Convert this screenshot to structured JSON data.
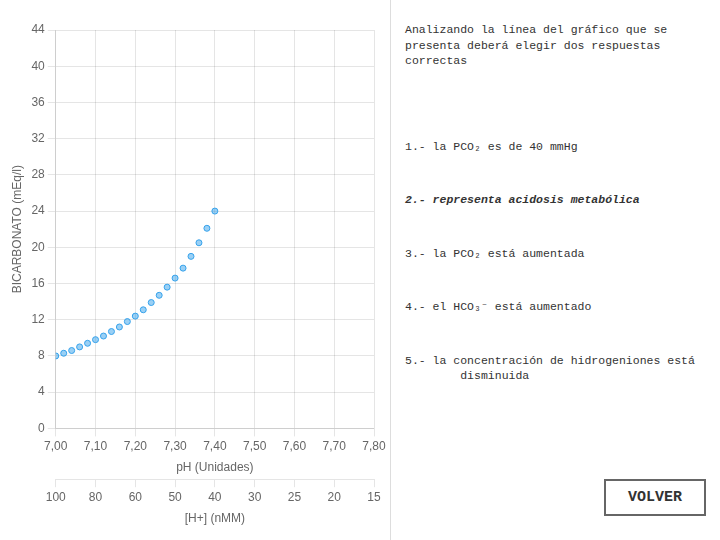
{
  "chart_data": {
    "type": "scatter",
    "title": "Analizando la línea del gráfico que se\npresenta deberá elegir dos respuestas\ncorrectas",
    "xlabel": "pH (Unidades)",
    "x2label": "[H+] (nMM)",
    "ylabel": "BICARBONATO (mEq/l)",
    "x": [
      7.0,
      7.02,
      7.04,
      7.06,
      7.08,
      7.1,
      7.12,
      7.14,
      7.16,
      7.18,
      7.2,
      7.22,
      7.24,
      7.26,
      7.28,
      7.3,
      7.32,
      7.34,
      7.36,
      7.38,
      7.4
    ],
    "values": [
      8.0,
      8.3,
      8.6,
      9.0,
      9.4,
      9.8,
      10.2,
      10.7,
      11.2,
      11.8,
      12.4,
      13.1,
      13.9,
      14.7,
      15.6,
      16.6,
      17.7,
      19.0,
      20.5,
      22.1,
      24.0
    ],
    "xlim": [
      7.0,
      7.8
    ],
    "xticks": [
      {
        "value": 7.0,
        "label": "7,00"
      },
      {
        "value": 7.1,
        "label": "7,10"
      },
      {
        "value": 7.2,
        "label": "7,20"
      },
      {
        "value": 7.3,
        "label": "7,30"
      },
      {
        "value": 7.4,
        "label": "7,40"
      },
      {
        "value": 7.5,
        "label": "7,50"
      },
      {
        "value": 7.6,
        "label": "7,60"
      },
      {
        "value": 7.7,
        "label": "7,70"
      },
      {
        "value": 7.8,
        "label": "7,80"
      }
    ],
    "x2lim": [
      7.0,
      7.8
    ],
    "x2ticks": [
      {
        "value": 7.0,
        "label": "100"
      },
      {
        "value": 7.1,
        "label": "80"
      },
      {
        "value": 7.2,
        "label": "60"
      },
      {
        "value": 7.3,
        "label": "50"
      },
      {
        "value": 7.4,
        "label": "40"
      },
      {
        "value": 7.5,
        "label": "30"
      },
      {
        "value": 7.6,
        "label": "25"
      },
      {
        "value": 7.7,
        "label": "20"
      },
      {
        "value": 7.8,
        "label": "15"
      }
    ],
    "ylim": [
      0,
      44
    ],
    "yticks": [
      0,
      4,
      8,
      12,
      16,
      20,
      24,
      28,
      32,
      36,
      40,
      44
    ],
    "grid": true,
    "annotations": [
      "1.- la PCO₂ es de 40 mmHg",
      "2.- representa acidosis metabólica",
      "3.- la PCO₂ está aumentada",
      "4.- el HCO₃⁻ está aumentado",
      "5.- la concentración de hidrogeniones está\n        disminuida",
      "VOLVER"
    ]
  }
}
